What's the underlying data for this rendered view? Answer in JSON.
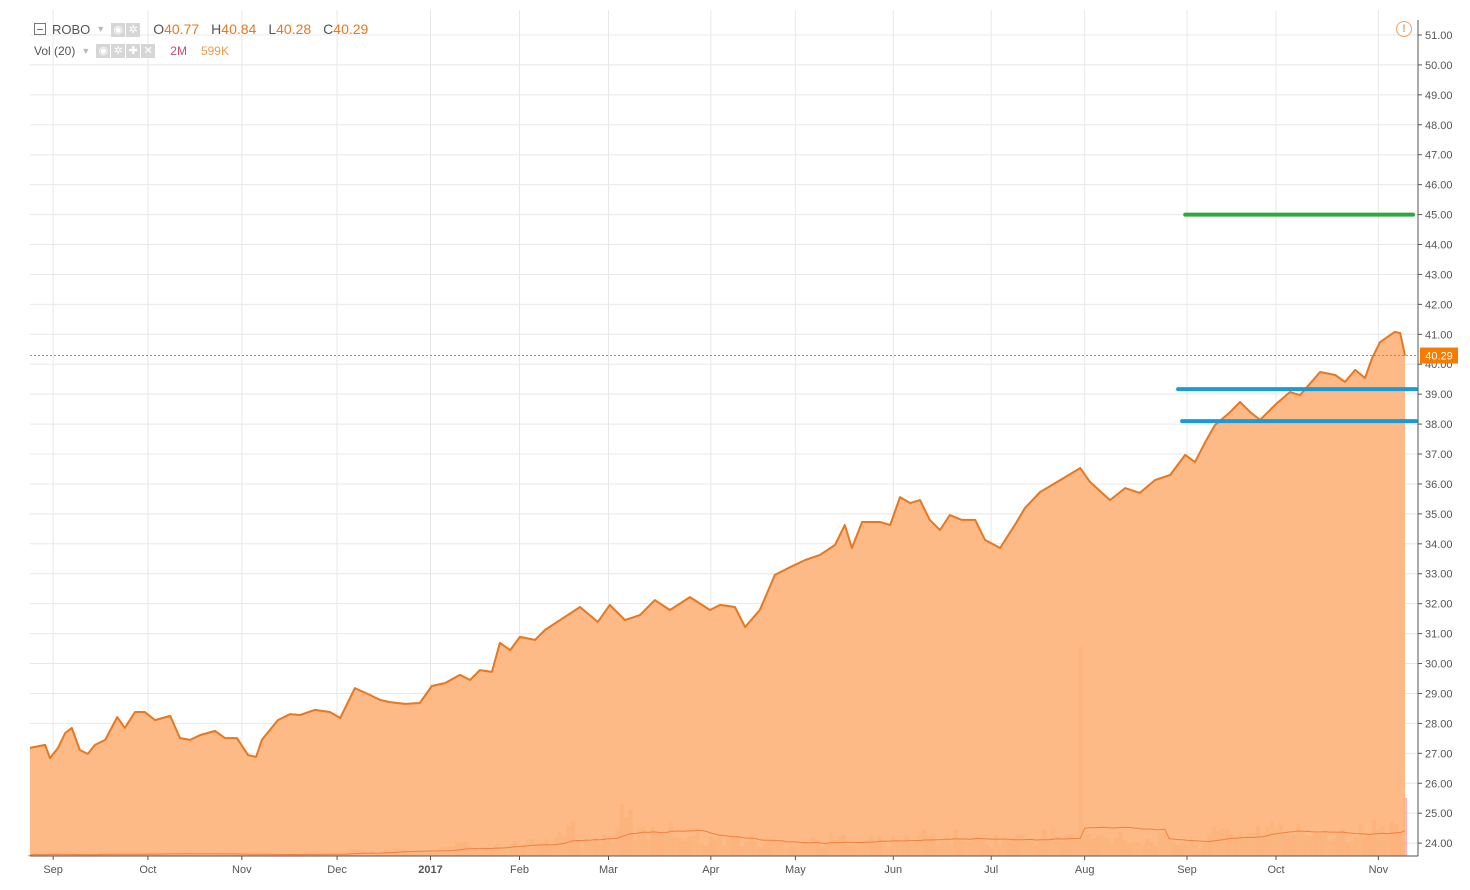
{
  "legend": {
    "symbol": "ROBO",
    "open_label": "O",
    "open": "40.77",
    "high_label": "H",
    "high": "40.84",
    "low_label": "L",
    "low": "40.28",
    "close_label": "C",
    "close": "40.29",
    "volume_study": "Vol (20)",
    "volume_1": "2M",
    "volume_2": "599K"
  },
  "icons": [
    "collapse-icon",
    "eye-icon",
    "gear-icon",
    "plus-icon",
    "close-icon",
    "warning-icon"
  ],
  "colors": {
    "line": "#e8771f",
    "fill": "#fdb47c",
    "last_price": "#f57c00",
    "green_line": "#2eaa3c",
    "blue_line": "#1a9ad6",
    "vol_up": "#c9b57a",
    "vol_down": "#f2906a"
  },
  "chart_data": {
    "type": "area",
    "title": "ROBO",
    "x_unit": "trading day index",
    "xlim": [
      0,
      311.5
    ],
    "ylim": [
      23.6,
      51.4
    ],
    "y_ticks": [
      "51.00",
      "50.00",
      "49.00",
      "48.00",
      "47.00",
      "46.00",
      "45.00",
      "44.00",
      "43.00",
      "42.00",
      "41.00",
      "40.00",
      "39.00",
      "38.00",
      "37.00",
      "36.00",
      "35.00",
      "34.00",
      "33.00",
      "32.00",
      "31.00",
      "30.00",
      "29.00",
      "28.00",
      "27.00",
      "26.00",
      "25.00",
      "24.00"
    ],
    "x_ticks": [
      {
        "label": "Sep",
        "day": 5.2
      },
      {
        "label": "Oct",
        "day": 26.5
      },
      {
        "label": "Nov",
        "day": 47.6
      },
      {
        "label": "Dec",
        "day": 69
      },
      {
        "label": "2017",
        "day": 90,
        "bold": true
      },
      {
        "label": "Feb",
        "day": 110
      },
      {
        "label": "Mar",
        "day": 130
      },
      {
        "label": "Apr",
        "day": 153
      },
      {
        "label": "May",
        "day": 172
      },
      {
        "label": "Jun",
        "day": 194
      },
      {
        "label": "Jul",
        "day": 216
      },
      {
        "label": "Aug",
        "day": 237
      },
      {
        "label": "Sep",
        "day": 260
      },
      {
        "label": "Oct",
        "day": 280
      },
      {
        "label": "Nov",
        "day": 303
      }
    ],
    "price": [
      [
        0,
        27.18
      ],
      [
        3.4,
        27.28
      ],
      [
        4.5,
        26.84
      ],
      [
        6.3,
        27.18
      ],
      [
        7.9,
        27.68
      ],
      [
        9.4,
        27.85
      ],
      [
        11.2,
        27.11
      ],
      [
        13,
        26.98
      ],
      [
        14.6,
        27.28
      ],
      [
        16.9,
        27.45
      ],
      [
        19.6,
        28.21
      ],
      [
        21.3,
        27.85
      ],
      [
        23.6,
        28.38
      ],
      [
        25.8,
        28.38
      ],
      [
        28.1,
        28.11
      ],
      [
        31.5,
        28.25
      ],
      [
        33.7,
        27.51
      ],
      [
        36,
        27.45
      ],
      [
        38.2,
        27.61
      ],
      [
        41.6,
        27.75
      ],
      [
        43.8,
        27.51
      ],
      [
        46.5,
        27.51
      ],
      [
        49,
        26.94
      ],
      [
        50.8,
        26.88
      ],
      [
        52.1,
        27.45
      ],
      [
        55.7,
        28.11
      ],
      [
        58.4,
        28.31
      ],
      [
        60.7,
        28.28
      ],
      [
        64,
        28.45
      ],
      [
        67.4,
        28.38
      ],
      [
        69.7,
        28.18
      ],
      [
        73,
        29.18
      ],
      [
        76.4,
        28.95
      ],
      [
        78.7,
        28.78
      ],
      [
        80.9,
        28.71
      ],
      [
        84.3,
        28.65
      ],
      [
        87.6,
        28.68
      ],
      [
        90.3,
        29.25
      ],
      [
        93.3,
        29.35
      ],
      [
        96.6,
        29.62
      ],
      [
        98.9,
        29.45
      ],
      [
        101.1,
        29.78
      ],
      [
        103.8,
        29.72
      ],
      [
        105.6,
        30.69
      ],
      [
        107.9,
        30.45
      ],
      [
        110.1,
        30.89
      ],
      [
        113.5,
        30.79
      ],
      [
        115.7,
        31.12
      ],
      [
        119.1,
        31.45
      ],
      [
        123.6,
        31.89
      ],
      [
        127.6,
        31.39
      ],
      [
        130.3,
        31.96
      ],
      [
        133.7,
        31.45
      ],
      [
        137.1,
        31.62
      ],
      [
        140.4,
        32.12
      ],
      [
        143.8,
        31.79
      ],
      [
        148.3,
        32.22
      ],
      [
        152.8,
        31.79
      ],
      [
        155.1,
        31.96
      ],
      [
        158.4,
        31.89
      ],
      [
        160.7,
        31.22
      ],
      [
        164,
        31.79
      ],
      [
        167.4,
        32.96
      ],
      [
        170.8,
        33.22
      ],
      [
        174.2,
        33.46
      ],
      [
        177.5,
        33.63
      ],
      [
        180.9,
        33.96
      ],
      [
        183.1,
        34.63
      ],
      [
        184.7,
        33.86
      ],
      [
        187,
        34.73
      ],
      [
        191,
        34.73
      ],
      [
        193.3,
        34.63
      ],
      [
        195.5,
        35.56
      ],
      [
        197.8,
        35.36
      ],
      [
        200,
        35.46
      ],
      [
        202.2,
        34.8
      ],
      [
        204.5,
        34.46
      ],
      [
        206.7,
        34.96
      ],
      [
        209.4,
        34.8
      ],
      [
        212.4,
        34.8
      ],
      [
        214.6,
        34.13
      ],
      [
        218,
        33.86
      ],
      [
        221.3,
        34.63
      ],
      [
        223.6,
        35.2
      ],
      [
        227,
        35.73
      ],
      [
        231.5,
        36.13
      ],
      [
        236,
        36.53
      ],
      [
        238.2,
        36.07
      ],
      [
        242.7,
        35.46
      ],
      [
        246.1,
        35.86
      ],
      [
        249.4,
        35.7
      ],
      [
        252.8,
        36.13
      ],
      [
        256.2,
        36.3
      ],
      [
        259.6,
        36.97
      ],
      [
        261.8,
        36.73
      ],
      [
        264,
        37.37
      ],
      [
        266.3,
        37.97
      ],
      [
        269.7,
        38.4
      ],
      [
        271.9,
        38.74
      ],
      [
        274.2,
        38.4
      ],
      [
        276.4,
        38.14
      ],
      [
        279.8,
        38.64
      ],
      [
        283.1,
        39.07
      ],
      [
        285.4,
        38.97
      ],
      [
        289.9,
        39.74
      ],
      [
        293.3,
        39.64
      ],
      [
        295.5,
        39.41
      ],
      [
        297.8,
        39.81
      ],
      [
        300,
        39.54
      ],
      [
        301.6,
        40.21
      ],
      [
        303.4,
        40.74
      ],
      [
        306.7,
        41.08
      ],
      [
        307.9,
        41.04
      ],
      [
        309,
        40.29
      ]
    ],
    "last_price": "40.29",
    "horizontal_lines": [
      {
        "name": "green-level-line",
        "price": 45.0,
        "from_day": 259.6,
        "to_day": 310.8,
        "color": "#2eaa3c"
      },
      {
        "name": "blue-level-line-upper",
        "price": 39.17,
        "from_day": 258,
        "to_day": 311.5,
        "color": "#1a9ad6"
      },
      {
        "name": "blue-level-line-lower",
        "price": 38.1,
        "from_day": 258.9,
        "to_day": 311.5,
        "color": "#1a9ad6"
      }
    ],
    "volume_unit": "K shares",
    "volume_step_days": 4,
    "volume": [
      20,
      25,
      15,
      20,
      30,
      20,
      25,
      20,
      40,
      25,
      20,
      15,
      20,
      25,
      20,
      30,
      25,
      20,
      60,
      50,
      70,
      60,
      50,
      90,
      120,
      80,
      110,
      130,
      150,
      200,
      300,
      180,
      220,
      450,
      280,
      380,
      300,
      250,
      200,
      200,
      180,
      150,
      160,
      170,
      180,
      200,
      220,
      190,
      170,
      200,
      250,
      210,
      230,
      180,
      190,
      220,
      200,
      250,
      230,
      240,
      220,
      260,
      180,
      200,
      190,
      150,
      250,
      300,
      280,
      350,
      300,
      300,
      320,
      280,
      300,
      330,
      340,
      350,
      330
    ],
    "volume_spikes": [
      {
        "day": 236,
        "value": 2600
      },
      {
        "day": 309,
        "value": 720,
        "partial": true
      }
    ],
    "volume_ma_period": 20
  }
}
